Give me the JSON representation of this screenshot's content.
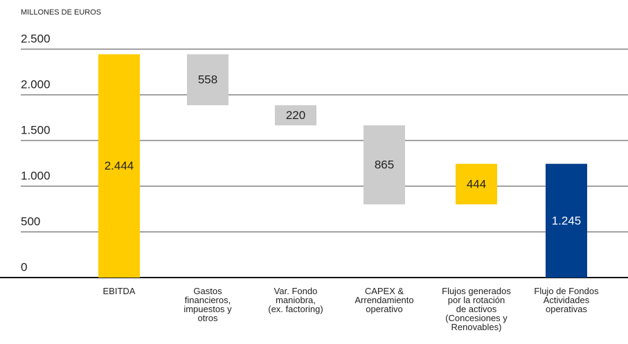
{
  "chart_data": {
    "type": "waterfall",
    "y_axis_label": "MILLONES DE EUROS",
    "categories": [
      "EBITDA",
      "Gastos\nfinancieros,\nimpuestos y\notros",
      "Var. Fondo\nmaniobra,\n(ex. factoring)",
      "CAPEX &\nArrendamiento\noperativo",
      "Flujos generados\npor la rotación\nde activos\n(Concesiones y\nRenovables)",
      "Flujo de Fondos\nActividades\noperativas"
    ],
    "values": [
      2444,
      558,
      220,
      865,
      444,
      1245
    ],
    "value_labels": [
      "2.444",
      "558",
      "220",
      "865",
      "444",
      "1.245"
    ],
    "measures": [
      "total",
      "decrease",
      "decrease",
      "decrease",
      "increase",
      "total"
    ],
    "colors": [
      "#ffcc00",
      "#cccccc",
      "#cccccc",
      "#cccccc",
      "#ffcc00",
      "#003e8e"
    ],
    "label_colors": [
      "#222222",
      "#222222",
      "#222222",
      "#222222",
      "#222222",
      "#ffffff"
    ],
    "ylim": [
      0,
      2500
    ],
    "yticks": [
      0,
      500,
      {
        "value": 1000,
        "label": "1.000"
      },
      {
        "value": 1500,
        "label": "1.500"
      },
      {
        "value": 2000,
        "label": "2.000"
      },
      {
        "value": 2500,
        "label": "2.500"
      }
    ],
    "grid": true
  }
}
